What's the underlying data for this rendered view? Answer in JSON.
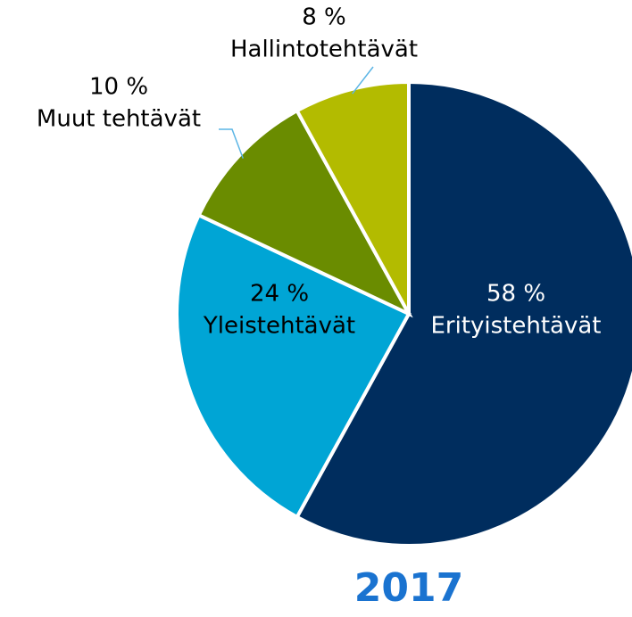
{
  "chart_data": {
    "type": "pie",
    "title": "2017",
    "categories": [
      "Erityistehtävät",
      "Yleistehtävät",
      "Muut tehtävät",
      "Hallintotehtävät"
    ],
    "values": [
      58,
      24,
      10,
      8
    ],
    "value_labels": [
      "58 %",
      "24 %",
      "10 %",
      "8 %"
    ],
    "colors": [
      "#002d5e",
      "#00a5d5",
      "#6a8c00",
      "#b3bb00"
    ]
  }
}
